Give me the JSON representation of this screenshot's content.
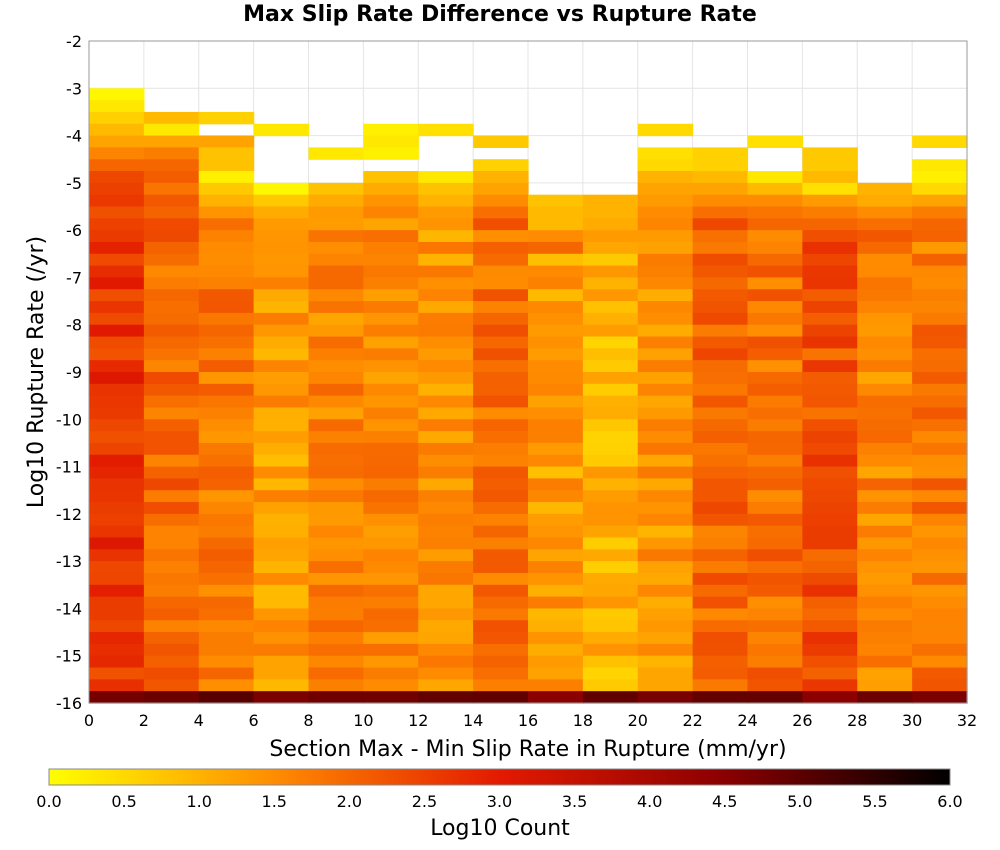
{
  "chart_data": {
    "type": "heatmap",
    "title": "Max Slip Rate Difference vs Rupture Rate",
    "xlabel": "Section Max - Min Slip Rate in Rupture (mm/yr)",
    "ylabel": "Log10 Rupture Rate (/yr)",
    "xlim": [
      0,
      32
    ],
    "ylim": [
      -16,
      -2
    ],
    "x_bin_width": 2,
    "y_bin_height": 0.25,
    "xticks": [
      "0",
      "2",
      "4",
      "6",
      "8",
      "10",
      "12",
      "14",
      "16",
      "18",
      "20",
      "22",
      "24",
      "26",
      "28",
      "30",
      "32"
    ],
    "yticks": [
      "-2",
      "-3",
      "-4",
      "-5",
      "-6",
      "-7",
      "-8",
      "-9",
      "-10",
      "-11",
      "-12",
      "-13",
      "-14",
      "-15",
      "-16"
    ],
    "grid": true,
    "colorbar": {
      "label": "Log10 Count",
      "range": [
        0,
        6
      ],
      "ticks": [
        "0.0",
        "0.5",
        "1.0",
        "1.5",
        "2.0",
        "2.5",
        "3.0",
        "3.5",
        "4.0",
        "4.5",
        "5.0",
        "5.5",
        "6.0"
      ],
      "colormap": [
        "#ffff00",
        "#ff8c00",
        "#e31a00",
        "#000000"
      ]
    },
    "columns": [
      {
        "x": 0,
        "ytop": -3.0,
        "top_values": [
          0.1,
          0.3,
          0.6,
          0.9,
          1.2,
          1.6,
          2.0,
          2.4,
          2.5,
          2.6
        ],
        "body": 2.9
      },
      {
        "x": 2,
        "ytop": -3.5,
        "top_values": [
          0.9,
          0.3,
          1.2,
          1.7,
          2.0
        ],
        "body": 2.2
      },
      {
        "x": 4,
        "ytop": -3.5,
        "top_values": [
          0.6,
          -1,
          1.2,
          0.8,
          0.8,
          0.2,
          0.7,
          1.0,
          1.4
        ],
        "body": 2.0
      },
      {
        "x": 6,
        "ytop": -3.75,
        "top_values": [
          0.3,
          -1,
          -1,
          -1,
          -1,
          0.1,
          0.7,
          1.1,
          1.3
        ],
        "body": 1.5
      },
      {
        "x": 8,
        "ytop": -4.25,
        "top_values": [
          0.3,
          -1,
          -1,
          0.8,
          1.1,
          1.3
        ],
        "body": 1.8
      },
      {
        "x": 10,
        "ytop": -3.75,
        "top_values": [
          0.2,
          0.3,
          0.2,
          -1,
          0.8,
          1.1,
          1.4,
          1.6
        ],
        "body": 1.8
      },
      {
        "x": 12,
        "ytop": -3.75,
        "top_values": [
          0.4,
          -1,
          -1,
          -1,
          0.3,
          0.8,
          1.0,
          1.3
        ],
        "body": 1.6
      },
      {
        "x": 14,
        "ytop": -4.0,
        "top_values": [
          0.7,
          -1,
          0.6,
          1.0,
          1.2,
          1.5,
          1.9,
          2.3
        ],
        "body": 2.1
      },
      {
        "x": 16,
        "ytop": -5.25,
        "top_values": [
          0.8,
          0.9,
          0.9,
          1.5,
          2.0
        ],
        "body": 1.5
      },
      {
        "x": 18,
        "ytop": -5.25,
        "top_values": [
          1.0,
          1.0,
          1.1,
          1.3
        ],
        "body": 1.2
      },
      {
        "x": 20,
        "ytop": -3.75,
        "top_values": [
          0.5,
          -1,
          0.4,
          0.5,
          1.0,
          1.2,
          1.3,
          1.5
        ],
        "body": 1.6
      },
      {
        "x": 22,
        "ytop": -4.25,
        "top_values": [
          0.6,
          0.6,
          0.9,
          1.2,
          1.5,
          1.9,
          2.4
        ],
        "body": 2.2
      },
      {
        "x": 24,
        "ytop": -4.0,
        "top_values": [
          0.4,
          -1,
          -1,
          0.3,
          0.9,
          1.5,
          1.8,
          2.0
        ],
        "body": 2.1
      },
      {
        "x": 26,
        "ytop": -4.25,
        "top_values": [
          0.7,
          0.7,
          0.9,
          0.4,
          1.3,
          1.7,
          2.0,
          2.3
        ],
        "body": 2.5
      },
      {
        "x": 28,
        "ytop": -5.0,
        "top_values": [
          1.0,
          1.1,
          1.5,
          1.9,
          2.2
        ],
        "body": 1.8
      },
      {
        "x": 30,
        "ytop": -4.0,
        "top_values": [
          0.5,
          -1,
          0.3,
          0.2,
          0.5,
          1.2,
          1.7,
          2.0
        ],
        "body": 2.0
      }
    ],
    "bottom_row_value": 4.9
  }
}
